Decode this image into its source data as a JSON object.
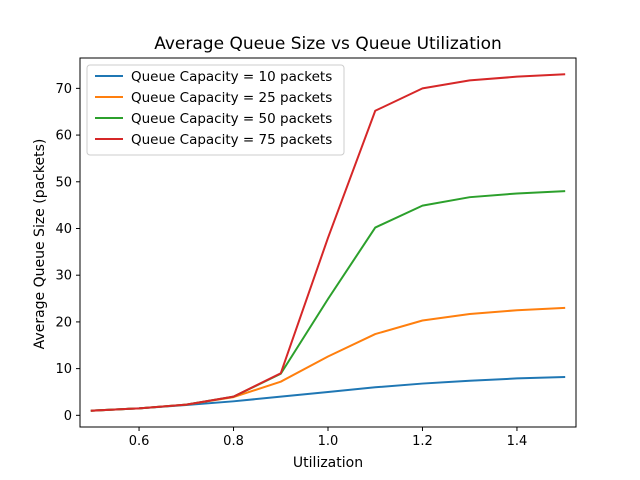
{
  "chart_data": {
    "type": "line",
    "title": "Average Queue Size vs Queue Utilization",
    "xlabel": "Utilization",
    "ylabel": "Average Queue Size (packets)",
    "xlim": [
      0.475,
      1.525
    ],
    "ylim": [
      -2.5,
      76.5
    ],
    "xticks": [
      0.6,
      0.8,
      1.0,
      1.2,
      1.4
    ],
    "xtick_labels": [
      "0.6",
      "0.8",
      "1.0",
      "1.2",
      "1.4"
    ],
    "yticks": [
      0,
      10,
      20,
      30,
      40,
      50,
      60,
      70
    ],
    "ytick_labels": [
      "0",
      "10",
      "20",
      "30",
      "40",
      "50",
      "60",
      "70"
    ],
    "grid": false,
    "legend_position": "top-left",
    "x": [
      0.5,
      0.6,
      0.7,
      0.8,
      0.9,
      1.0,
      1.1,
      1.2,
      1.3,
      1.4,
      1.5
    ],
    "series": [
      {
        "name": "Queue Capacity = 10 packets",
        "color": "#1f77b4",
        "values": [
          1.0,
          1.5,
          2.2,
          3.0,
          4.0,
          5.0,
          6.0,
          6.8,
          7.4,
          7.9,
          8.2
        ]
      },
      {
        "name": "Queue Capacity = 25 packets",
        "color": "#ff7f0e",
        "values": [
          1.0,
          1.5,
          2.3,
          3.9,
          7.2,
          12.6,
          17.4,
          20.3,
          21.7,
          22.5,
          23.0
        ]
      },
      {
        "name": "Queue Capacity = 50 packets",
        "color": "#2ca02c",
        "values": [
          1.0,
          1.5,
          2.3,
          4.0,
          8.9,
          24.9,
          40.2,
          44.9,
          46.7,
          47.5,
          48.0
        ]
      },
      {
        "name": "Queue Capacity = 75 packets",
        "color": "#d62728",
        "values": [
          1.0,
          1.5,
          2.3,
          4.0,
          9.0,
          38.0,
          65.2,
          70.0,
          71.7,
          72.5,
          73.0
        ]
      }
    ]
  }
}
